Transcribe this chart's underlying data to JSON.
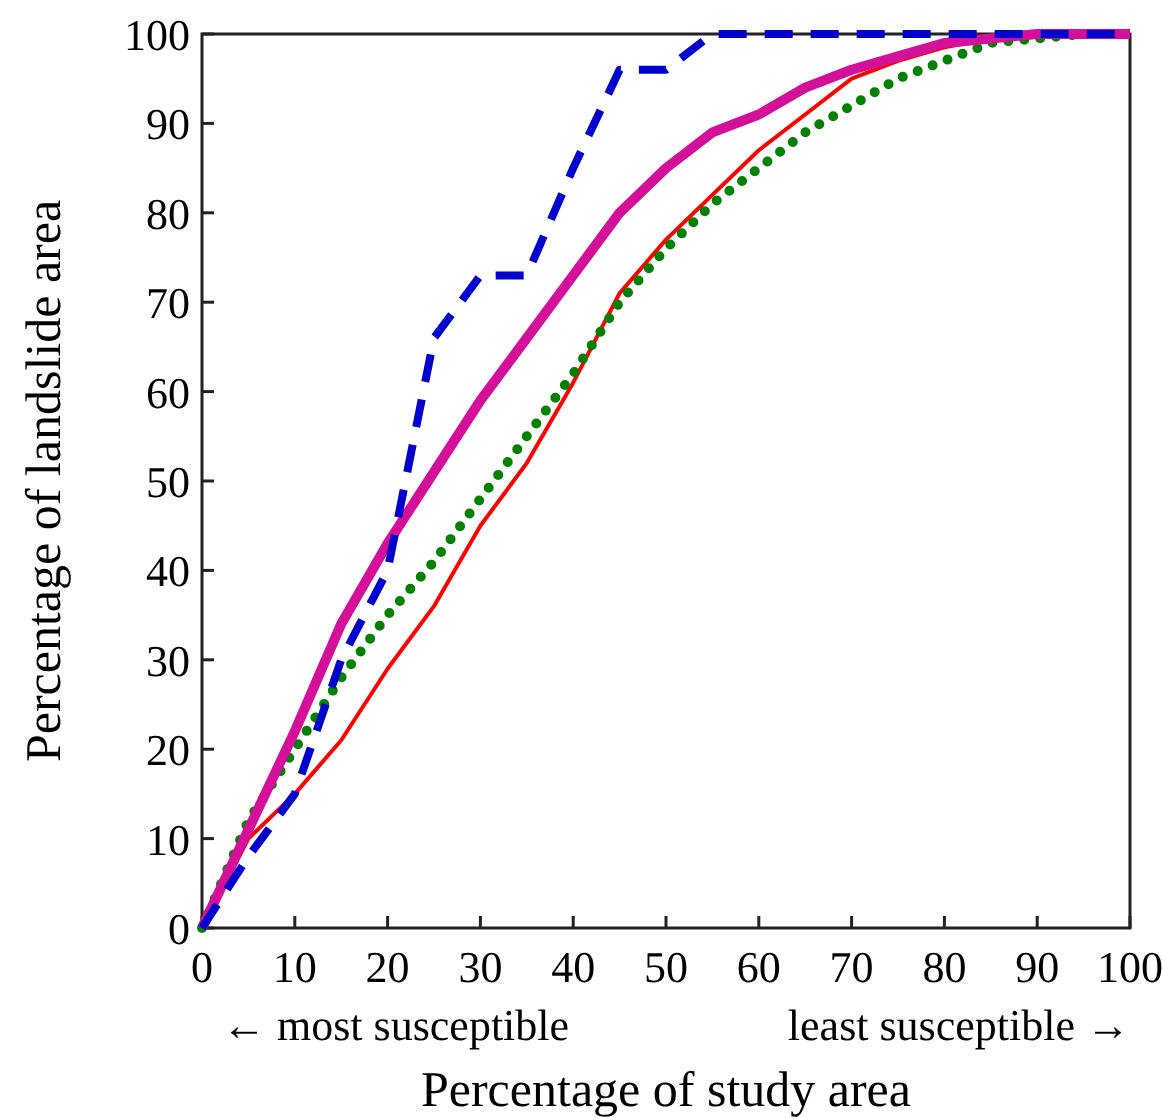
{
  "chart_data": {
    "type": "line",
    "xlabel": "Percentage of study area",
    "ylabel": "Percentage of landslide area",
    "annotations": [
      "← most susceptible",
      "least susceptible →"
    ],
    "x": [
      0,
      5,
      10,
      15,
      20,
      25,
      30,
      35,
      40,
      45,
      50,
      55,
      60,
      65,
      70,
      75,
      80,
      85,
      90,
      95,
      100
    ],
    "xlim": [
      0,
      100
    ],
    "ylim": [
      0,
      100
    ],
    "xticks": [
      0,
      10,
      20,
      30,
      40,
      50,
      60,
      70,
      80,
      90,
      100
    ],
    "yticks": [
      0,
      10,
      20,
      30,
      40,
      50,
      60,
      70,
      80,
      90,
      100
    ],
    "grid": false,
    "series": [
      {
        "color": "#ff0000",
        "line_style": "solid",
        "values": [
          0,
          10,
          15,
          21,
          29,
          36,
          45,
          52,
          61,
          71,
          77,
          82,
          87,
          91,
          95,
          97,
          98.5,
          99.5,
          null,
          null,
          null
        ]
      },
      {
        "color": "#008000",
        "line_style": "dotted",
        "values": [
          0,
          12,
          20,
          28,
          35,
          41,
          48,
          55,
          62,
          70,
          76,
          81,
          85,
          89,
          92,
          95,
          97,
          99,
          99.5,
          100,
          100
        ]
      },
      {
        "color": "#d4109a",
        "line_style": "solid",
        "values": [
          0,
          11,
          22,
          34,
          43,
          51,
          59,
          66,
          73,
          80,
          85,
          89,
          91,
          94,
          96,
          97.5,
          99,
          99.5,
          100,
          100,
          100
        ]
      },
      {
        "color": "#0000cc",
        "line_style": "dashed",
        "values": [
          0,
          8,
          15,
          30,
          40,
          66,
          73,
          73,
          85,
          96,
          96,
          100,
          100,
          100,
          100,
          100,
          100,
          100,
          100,
          100,
          100
        ]
      }
    ]
  }
}
